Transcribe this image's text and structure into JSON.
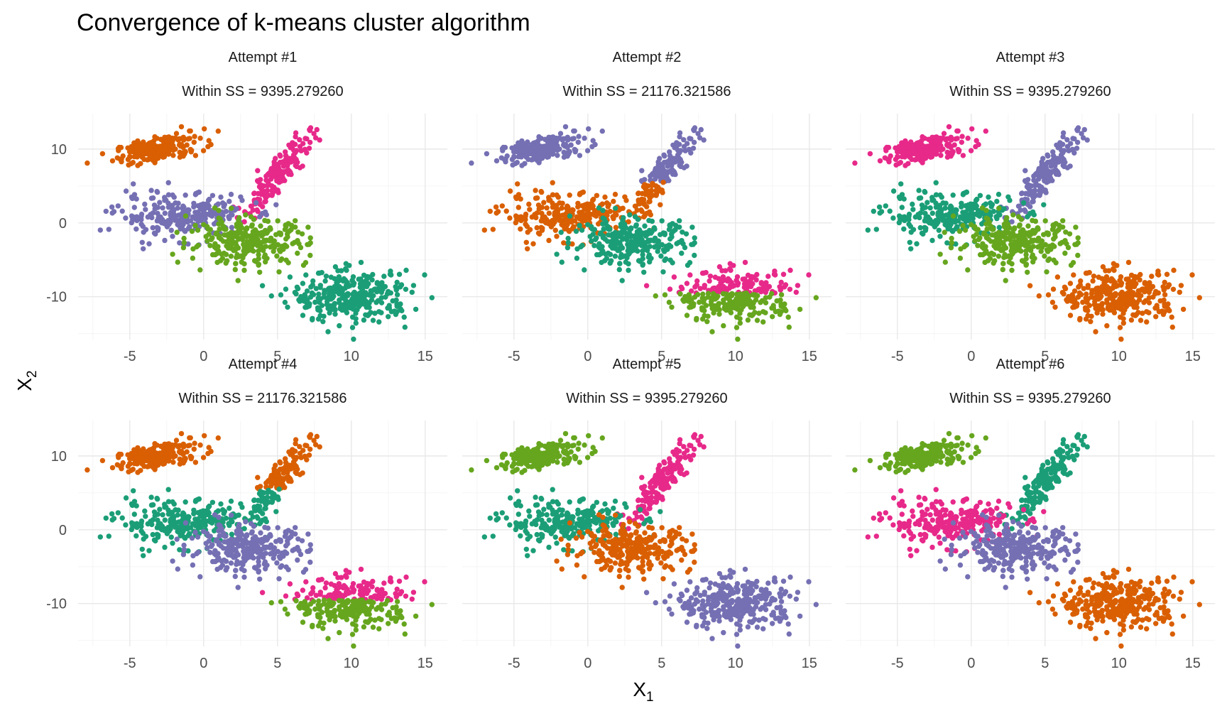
{
  "chart_data": {
    "type": "scatter",
    "title": "Convergence of k-means cluster algorithm",
    "xlabel": "X",
    "xlabel_sub": "1",
    "ylabel": "X",
    "ylabel_sub": "2",
    "xlim": [
      -8.5,
      16.5
    ],
    "ylim": [
      -15.8,
      14.8
    ],
    "x_ticks": [
      -5,
      0,
      5,
      10,
      15
    ],
    "x_tick_labels": [
      "-5",
      "0",
      "5",
      "10",
      "15"
    ],
    "y_ticks": [
      -10,
      0,
      10
    ],
    "y_tick_labels": [
      "-10",
      "0",
      "10"
    ],
    "grid": true,
    "palette": {
      "teal": "#1b9e77",
      "orange": "#d95f02",
      "purple": "#7570b3",
      "magenta": "#e7298a",
      "green": "#66a61e"
    },
    "blobs": [
      {
        "id": "A",
        "center": [
          -3.0,
          10.0
        ],
        "spread": [
          1.5,
          1.0
        ],
        "corr": 0.55,
        "n": 190
      },
      {
        "id": "B",
        "center": [
          5.0,
          6.5
        ],
        "spread": [
          1.1,
          2.7
        ],
        "corr": 0.88,
        "n": 190
      },
      {
        "id": "C",
        "center": [
          -1.5,
          1.0
        ],
        "spread": [
          2.2,
          1.5
        ],
        "corr": 0.0,
        "n": 250
      },
      {
        "id": "D",
        "center": [
          3.0,
          -2.5
        ],
        "spread": [
          2.0,
          1.6
        ],
        "corr": 0.0,
        "n": 280
      },
      {
        "id": "E",
        "center": [
          10.0,
          -10.0
        ],
        "spread": [
          2.0,
          1.7
        ],
        "corr": 0.0,
        "n": 320
      }
    ],
    "panels": [
      {
        "title": "Attempt #1",
        "subtitle": "Within SS = 9395.279260",
        "within_ss": 9395.27926,
        "clusters": [
          {
            "color": "orange",
            "blob": "A"
          },
          {
            "color": "magenta",
            "blob": "B"
          },
          {
            "color": "purple",
            "blob": "C"
          },
          {
            "color": "green",
            "blob": "D"
          },
          {
            "color": "teal",
            "blob": "E"
          }
        ]
      },
      {
        "title": "Attempt #2",
        "subtitle": "Within SS = 21176.321586",
        "within_ss": 21176.321586,
        "clusters": [
          {
            "color": "purple",
            "blob": "A"
          },
          {
            "color": "purple",
            "blob": "B",
            "where": "upper",
            "split_y": 5.5
          },
          {
            "color": "orange",
            "blob": "B",
            "where": "lower",
            "split_y": 5.5
          },
          {
            "color": "orange",
            "blob": "C"
          },
          {
            "color": "teal",
            "blob": "D"
          },
          {
            "color": "magenta",
            "blob": "E",
            "where": "upper",
            "split_y": -9.5
          },
          {
            "color": "green",
            "blob": "E",
            "where": "lower",
            "split_y": -9.5
          }
        ]
      },
      {
        "title": "Attempt #3",
        "subtitle": "Within SS = 9395.279260",
        "within_ss": 9395.27926,
        "clusters": [
          {
            "color": "magenta",
            "blob": "A"
          },
          {
            "color": "purple",
            "blob": "B"
          },
          {
            "color": "teal",
            "blob": "C"
          },
          {
            "color": "green",
            "blob": "D"
          },
          {
            "color": "orange",
            "blob": "E"
          }
        ]
      },
      {
        "title": "Attempt #4",
        "subtitle": "Within SS = 21176.321586",
        "within_ss": 21176.321586,
        "clusters": [
          {
            "color": "orange",
            "blob": "A"
          },
          {
            "color": "orange",
            "blob": "B",
            "where": "upper",
            "split_y": 5.5
          },
          {
            "color": "teal",
            "blob": "B",
            "where": "lower",
            "split_y": 5.5
          },
          {
            "color": "teal",
            "blob": "C"
          },
          {
            "color": "purple",
            "blob": "D"
          },
          {
            "color": "magenta",
            "blob": "E",
            "where": "upper",
            "split_y": -9.5
          },
          {
            "color": "green",
            "blob": "E",
            "where": "lower",
            "split_y": -9.5
          }
        ]
      },
      {
        "title": "Attempt #5",
        "subtitle": "Within SS = 9395.279260",
        "within_ss": 9395.27926,
        "clusters": [
          {
            "color": "green",
            "blob": "A"
          },
          {
            "color": "magenta",
            "blob": "B"
          },
          {
            "color": "teal",
            "blob": "C"
          },
          {
            "color": "orange",
            "blob": "D"
          },
          {
            "color": "purple",
            "blob": "E"
          }
        ]
      },
      {
        "title": "Attempt #6",
        "subtitle": "Within SS = 9395.279260",
        "within_ss": 9395.27926,
        "clusters": [
          {
            "color": "green",
            "blob": "A"
          },
          {
            "color": "teal",
            "blob": "B"
          },
          {
            "color": "magenta",
            "blob": "C"
          },
          {
            "color": "purple",
            "blob": "D"
          },
          {
            "color": "orange",
            "blob": "E"
          }
        ]
      }
    ]
  }
}
